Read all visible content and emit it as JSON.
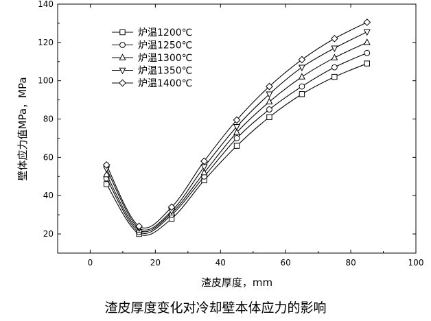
{
  "caption": "渣皮厚度变化对冷却壁本体应力的影响",
  "chart_data": {
    "type": "line",
    "xlabel": "渣皮厚度，mm",
    "ylabel": "壁体应力值MPa，MPa",
    "xlim": [
      -10,
      100
    ],
    "ylim": [
      10,
      140
    ],
    "xticks": [
      0,
      20,
      40,
      60,
      80,
      100
    ],
    "yticks": [
      20,
      40,
      60,
      80,
      100,
      120,
      140
    ],
    "legend_position": "top-left",
    "grid": false,
    "x": [
      5,
      15,
      25,
      35,
      45,
      55,
      65,
      75,
      85
    ],
    "series": [
      {
        "name": "炉温1200℃",
        "marker": "square",
        "values": [
          46,
          20,
          28,
          48,
          66,
          81,
          93,
          102,
          109
        ]
      },
      {
        "name": "炉温1250℃",
        "marker": "circle",
        "values": [
          49,
          21,
          30,
          50,
          70,
          85,
          97,
          107,
          114.5
        ]
      },
      {
        "name": "炉温1300℃",
        "marker": "triangle-up",
        "values": [
          51,
          22,
          31,
          52,
          73,
          89,
          102,
          112,
          120
        ]
      },
      {
        "name": "炉温1350℃",
        "marker": "triangle-down",
        "values": [
          54,
          23,
          32,
          55,
          76,
          93,
          107,
          117,
          125.5
        ]
      },
      {
        "name": "炉温1400℃",
        "marker": "diamond",
        "values": [
          56,
          24,
          34,
          58,
          79.5,
          97,
          111,
          122,
          130.5
        ]
      }
    ]
  }
}
